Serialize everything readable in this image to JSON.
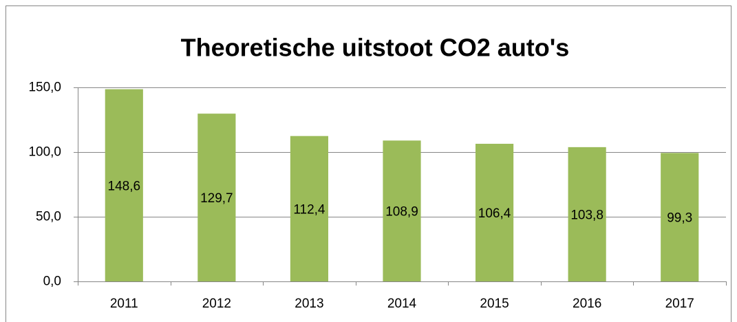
{
  "chart_data": {
    "type": "bar",
    "title": "Theoretische  uitstoot CO2 auto's",
    "categories": [
      "2011",
      "2012",
      "2013",
      "2014",
      "2015",
      "2016",
      "2017"
    ],
    "values": [
      148.6,
      129.7,
      112.4,
      108.9,
      106.4,
      103.8,
      99.3
    ],
    "value_labels": [
      "148,6",
      "129,7",
      "112,4",
      "108,9",
      "106,4",
      "103,8",
      "99,3"
    ],
    "color": "#9bbb59",
    "ylim": [
      0,
      150
    ],
    "yticks": [
      {
        "value": 0,
        "label": "0,0"
      },
      {
        "value": 50,
        "label": "50,0"
      },
      {
        "value": 100,
        "label": "100,0"
      },
      {
        "value": 150,
        "label": "150,0"
      }
    ],
    "grid": true
  }
}
